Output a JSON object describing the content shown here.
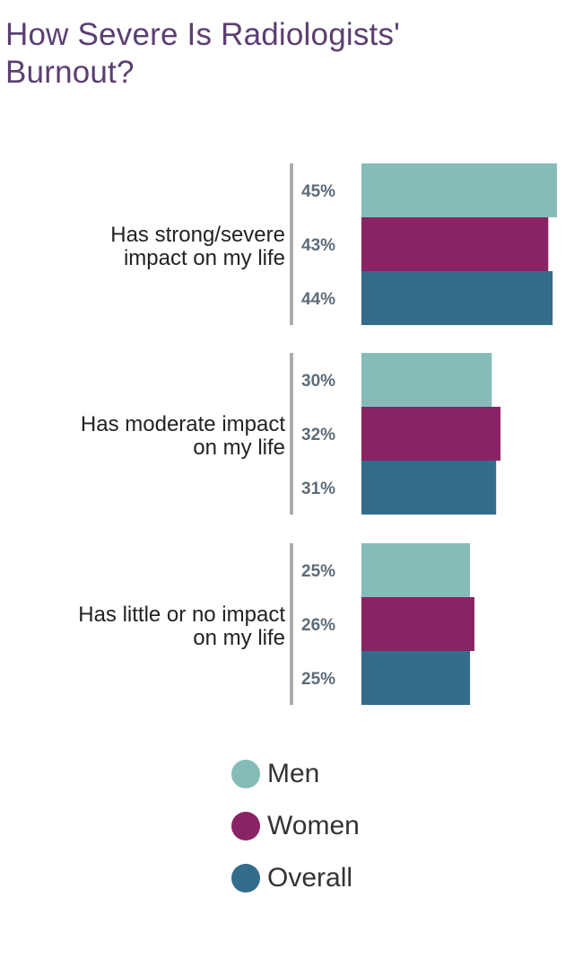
{
  "title": "How Severe Is Radiologists'\nBurnout?",
  "colors": {
    "men": "#86bcb7",
    "women": "#8a2363",
    "overall": "#346c8c",
    "bracket": "#a9adb0",
    "value_text": "#5d6c78",
    "category_text": "#222222"
  },
  "legend": {
    "items": [
      {
        "label": "Men",
        "color": "#86bcb7"
      },
      {
        "label": "Women",
        "color": "#8a2363"
      },
      {
        "label": "Overall",
        "color": "#346c8c"
      }
    ]
  },
  "chart_data": {
    "type": "bar",
    "orientation": "horizontal",
    "title": "How Severe Is Radiologists' Burnout?",
    "categories": [
      [
        "Has strong/severe",
        "impact on my life"
      ],
      [
        "Has moderate impact",
        "on my life"
      ],
      [
        "Has little or no impact",
        "on my life"
      ]
    ],
    "series": [
      {
        "name": "Men",
        "values": [
          45,
          30,
          25
        ],
        "labels": [
          "45%",
          "30%",
          "25%"
        ]
      },
      {
        "name": "Women",
        "values": [
          43,
          32,
          26
        ],
        "labels": [
          "43%",
          "32%",
          "26%"
        ]
      },
      {
        "name": "Overall",
        "values": [
          44,
          31,
          25
        ],
        "labels": [
          "44%",
          "31%",
          "25%"
        ]
      }
    ],
    "xlim": [
      0,
      45
    ],
    "grid": false,
    "legend_position": "bottom"
  }
}
